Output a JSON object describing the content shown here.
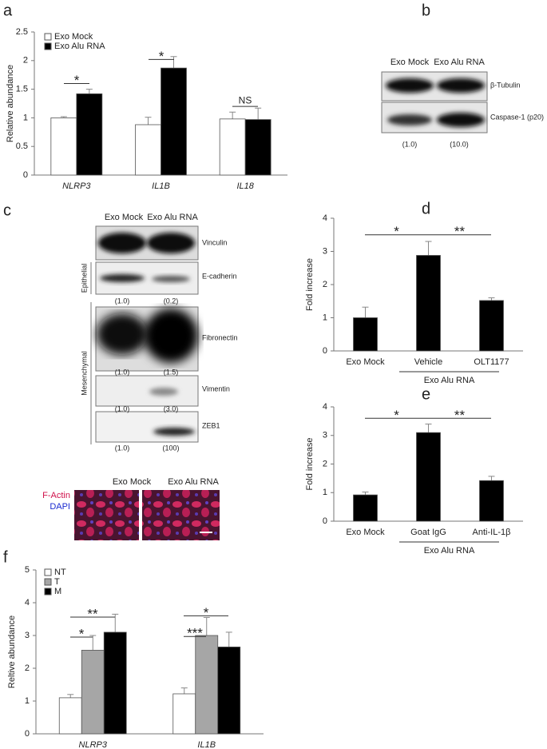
{
  "chart_data": [
    {
      "type": "bar",
      "panel": "a",
      "ylabel": "Relative abundance",
      "categories": [
        "NLRP3",
        "IL1B",
        "IL18"
      ],
      "series": [
        {
          "name": "Exo Mock",
          "color": "#ffffff",
          "values": [
            1.0,
            0.88,
            0.98
          ],
          "errors": [
            0.02,
            0.13,
            0.12
          ]
        },
        {
          "name": "Exo Alu RNA",
          "color": "#000000",
          "values": [
            1.42,
            1.87,
            0.97
          ],
          "errors": [
            0.08,
            0.2,
            0.2
          ]
        }
      ],
      "ylim": [
        0,
        2.5
      ],
      "yticks": [
        0,
        0.5,
        1,
        1.5,
        2,
        2.5
      ],
      "annotations": [
        "*",
        "*",
        "NS"
      ]
    },
    {
      "type": "bar",
      "panel": "d",
      "ylabel": "Fold increase",
      "categories": [
        "Exo Mock",
        "Vehicle",
        "OLT1177"
      ],
      "series": [
        {
          "name": null,
          "color": "#000000",
          "values": [
            1.0,
            2.88,
            1.52
          ],
          "errors": [
            0.32,
            0.42,
            0.08
          ]
        }
      ],
      "ylim": [
        0,
        4
      ],
      "yticks": [
        0,
        1,
        2,
        3,
        4
      ],
      "annotations": [
        "*",
        "**"
      ],
      "group_label": "Exo Alu RNA"
    },
    {
      "type": "bar",
      "panel": "e",
      "ylabel": "Fold increase",
      "categories": [
        "Exo Mock",
        "Goat IgG",
        "Anti-IL-1β"
      ],
      "series": [
        {
          "name": null,
          "color": "#000000",
          "values": [
            0.92,
            3.1,
            1.42
          ],
          "errors": [
            0.1,
            0.3,
            0.15
          ]
        }
      ],
      "ylim": [
        0,
        4
      ],
      "yticks": [
        0,
        1,
        2,
        3,
        4
      ],
      "annotations": [
        "*",
        "**"
      ],
      "group_label": "Exo Alu RNA"
    },
    {
      "type": "bar",
      "panel": "f",
      "ylabel": "Reltive abundance",
      "categories": [
        "NLRP3",
        "IL1B"
      ],
      "series": [
        {
          "name": "NT",
          "color": "#ffffff",
          "values": [
            1.1,
            1.22
          ],
          "errors": [
            0.1,
            0.18
          ]
        },
        {
          "name": "T",
          "color": "#a6a6a6",
          "values": [
            2.55,
            3.0
          ],
          "errors": [
            0.45,
            0.55
          ]
        },
        {
          "name": "M",
          "color": "#000000",
          "values": [
            3.1,
            2.65
          ],
          "errors": [
            0.55,
            0.45
          ]
        }
      ],
      "ylim": [
        0,
        5
      ],
      "yticks": [
        0,
        1,
        2,
        3,
        4,
        5
      ],
      "annotations": [
        "*",
        "**",
        "***",
        "*"
      ]
    }
  ],
  "blot_b": {
    "panel": "b",
    "lanes": [
      "Exo Mock",
      "Exo Alu RNA"
    ],
    "bands": [
      "β-Tubulin",
      "Caspase-1 (p20)"
    ],
    "quant": [
      "(1.0)",
      "(10.0)"
    ]
  },
  "blot_c": {
    "panel": "c",
    "lanes": [
      "Exo Mock",
      "Exo Alu RNA"
    ],
    "bands": [
      "Vinculin",
      "E-cadherin",
      "Fibronectin",
      "Vimentin",
      "ZEB1"
    ],
    "quant": [
      null,
      [
        "(1.0)",
        "(0.2)"
      ],
      [
        "(1.0)",
        "(1.5)"
      ],
      [
        "(1.0)",
        "(3.0)"
      ],
      [
        "(1.0)",
        "(100)"
      ]
    ],
    "groups": [
      "Epithelial",
      "Mesenchymal"
    ]
  },
  "micrograph": {
    "lanes": [
      "Exo Mock",
      "Exo Alu RNA"
    ],
    "stains": [
      "F-Actin",
      "DAPI"
    ]
  }
}
